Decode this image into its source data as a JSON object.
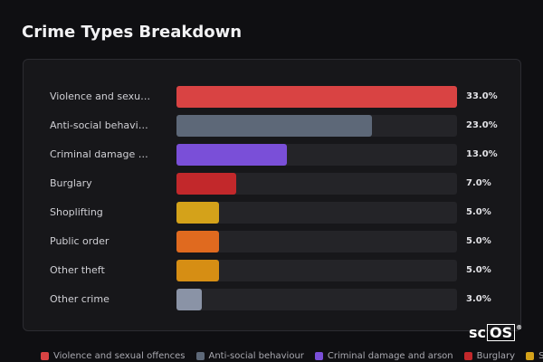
{
  "chart_data": {
    "type": "bar",
    "orientation": "horizontal",
    "title": "Crime Types Breakdown",
    "categories": [
      "Violence and sexual offences",
      "Anti-social behaviour",
      "Criminal damage and arson",
      "Burglary",
      "Shoplifting",
      "Public order",
      "Other theft",
      "Other crime"
    ],
    "values": [
      33,
      23,
      13,
      7,
      5,
      5,
      5,
      3
    ],
    "value_labels": [
      "33.0%",
      "23.0%",
      "13.0%",
      "7.0%",
      "5.0%",
      "5.0%",
      "5.0%",
      "3.0%"
    ],
    "colors": [
      "#d94343",
      "#5d6878",
      "#7a4fd8",
      "#c2282b",
      "#d4a21a",
      "#e06a1f",
      "#d68e14",
      "#8a93a6"
    ],
    "xlim": [
      0,
      33
    ]
  },
  "logo": {
    "prefix": "sc",
    "boxed": "OS",
    "mark": "®"
  }
}
